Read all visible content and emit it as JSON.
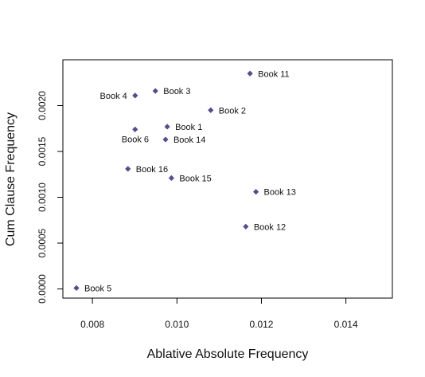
{
  "chart_data": {
    "type": "scatter",
    "title": "",
    "xlabel": "Ablative Absolute Frequency",
    "ylabel": "Cum Clause Frequency",
    "xlim": [
      0.0073,
      0.0151
    ],
    "ylim": [
      -0.0001,
      0.0025
    ],
    "x_ticks": [
      0.008,
      0.01,
      0.012,
      0.014
    ],
    "x_tick_labels": [
      "0.008",
      "0.010",
      "0.012",
      "0.014"
    ],
    "y_ticks": [
      0.0,
      0.0005,
      0.001,
      0.0015,
      0.002
    ],
    "y_tick_labels": [
      "0.0000",
      "0.0005",
      "0.0010",
      "0.0015",
      "0.0020"
    ],
    "grid": false,
    "marker_color": "#5b4a8b",
    "points": [
      {
        "label": "Book 1",
        "x": 0.00977,
        "y": 0.00177,
        "label_side": "right"
      },
      {
        "label": "Book 2",
        "x": 0.0108,
        "y": 0.00195,
        "label_side": "right"
      },
      {
        "label": "Book 3",
        "x": 0.00949,
        "y": 0.00216,
        "label_side": "right"
      },
      {
        "label": "Book 4",
        "x": 0.00901,
        "y": 0.00211,
        "label_side": "left"
      },
      {
        "label": "Book 5",
        "x": 0.00762,
        "y": 1e-05,
        "label_side": "right"
      },
      {
        "label": "Book 6",
        "x": 0.00901,
        "y": 0.00174,
        "label_side": "below-left"
      },
      {
        "label": "Book 11",
        "x": 0.01173,
        "y": 0.00235,
        "label_side": "right"
      },
      {
        "label": "Book 12",
        "x": 0.01163,
        "y": 0.00068,
        "label_side": "right"
      },
      {
        "label": "Book 13",
        "x": 0.01187,
        "y": 0.00106,
        "label_side": "right"
      },
      {
        "label": "Book 14",
        "x": 0.00973,
        "y": 0.00163,
        "label_side": "right"
      },
      {
        "label": "Book 15",
        "x": 0.00987,
        "y": 0.00121,
        "label_side": "right"
      },
      {
        "label": "Book 16",
        "x": 0.00884,
        "y": 0.00131,
        "label_side": "right"
      }
    ]
  }
}
